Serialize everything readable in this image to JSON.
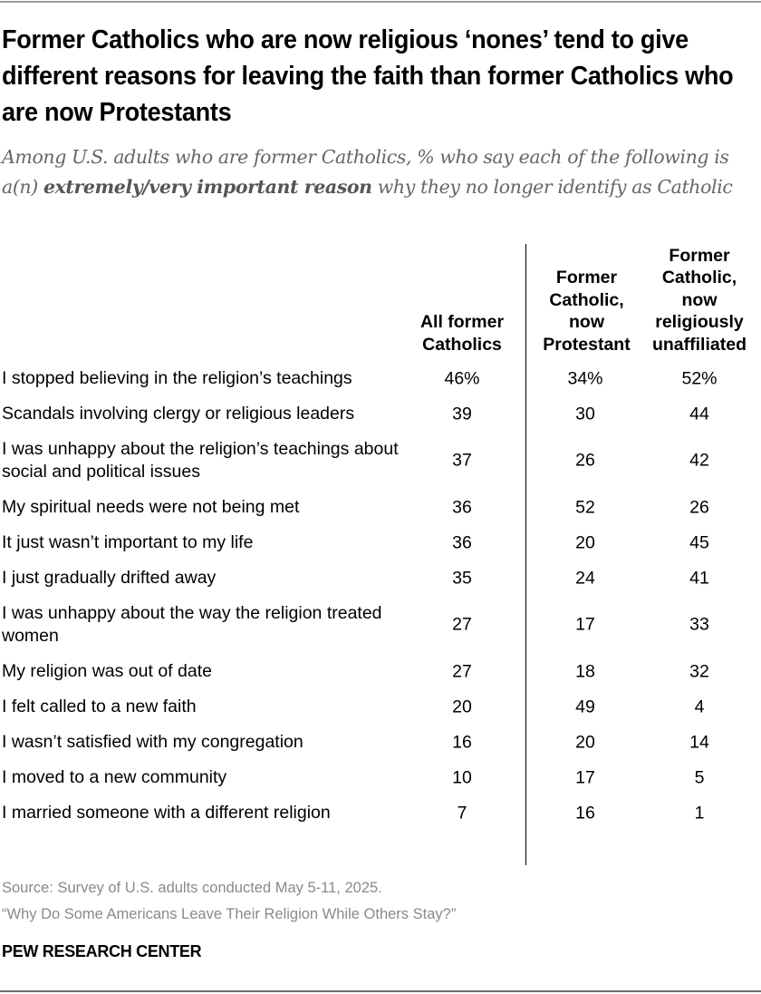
{
  "title": "Former Catholics who are now religious ‘nones’ tend to give different reasons for leaving the faith than former Catholics who are now Protestants",
  "subtitle": {
    "before": "Among U.S. adults who are former Catholics, % who say each of the following is a(n) ",
    "bold": "extremely/very important reason",
    "after": " why they no longer identify as Catholic"
  },
  "chart_data": {
    "type": "table",
    "columns": [
      "All former Catholics",
      "Former Catholic, now Protestant",
      "Former Catholic, now religiously unaffiliated"
    ],
    "rows": [
      "I stopped believing in the religion’s teachings",
      "Scandals involving clergy or religious leaders",
      "I was unhappy about the religion’s teachings about social and political issues",
      "My spiritual needs were not being met",
      "It just wasn’t important to my life",
      "I just gradually drifted away",
      "I was unhappy about the way the religion treated women",
      "My religion was out of date",
      "I felt called to a new faith",
      "I wasn’t satisfied with my congregation",
      "I moved to a new community",
      "I married someone with a different religion"
    ],
    "series": [
      {
        "name": "All former Catholics",
        "values": [
          46,
          39,
          37,
          36,
          36,
          35,
          27,
          27,
          20,
          16,
          10,
          7
        ]
      },
      {
        "name": "Former Catholic, now Protestant",
        "values": [
          34,
          30,
          26,
          52,
          20,
          24,
          17,
          18,
          49,
          20,
          17,
          16
        ]
      },
      {
        "name": "Former Catholic, now religiously unaffiliated",
        "values": [
          52,
          44,
          42,
          26,
          45,
          41,
          33,
          32,
          4,
          14,
          5,
          1
        ]
      }
    ],
    "unit": "%"
  },
  "footer": {
    "source": "Source: Survey of U.S. adults conducted May 5-11, 2025.",
    "report": "“Why Do Some Americans Leave Their Religion While Others Stay?”"
  },
  "brand": "PEW RESEARCH CENTER"
}
